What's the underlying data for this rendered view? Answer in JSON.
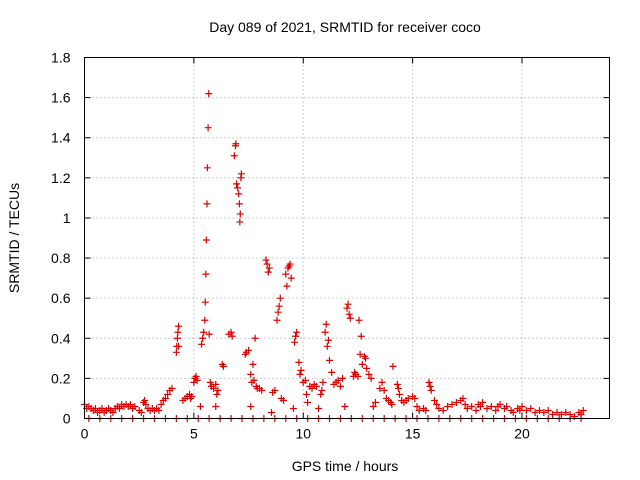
{
  "chart_data": {
    "type": "scatter",
    "title": "Day 089 of 2021, SRMTID for receiver coco",
    "xlabel": "GPS time / hours",
    "ylabel": "SRMTID / TECUs",
    "xlim": [
      0,
      24
    ],
    "ylim": [
      0,
      1.8
    ],
    "x_ticks": [
      0,
      5,
      10,
      15,
      20
    ],
    "x_tick_labels": [
      "0",
      "5",
      "10",
      "15",
      "20"
    ],
    "y_ticks": [
      0,
      0.2,
      0.4,
      0.6,
      0.8,
      1.0,
      1.2,
      1.4,
      1.6,
      1.8
    ],
    "y_tick_labels": [
      "0",
      "0.2",
      "0.4",
      "0.6",
      "0.8",
      "1",
      "1.2",
      "1.4",
      "1.6",
      "1.8"
    ],
    "grid": true,
    "marker": "plus",
    "series": [
      {
        "name": "SRMTID",
        "color": "#e00000",
        "points": [
          [
            0.0,
            0.07
          ],
          [
            0.1,
            0.05
          ],
          [
            0.2,
            0.06
          ],
          [
            0.3,
            0.05
          ],
          [
            0.4,
            0.04
          ],
          [
            0.5,
            0.05
          ],
          [
            0.6,
            0.03
          ],
          [
            0.7,
            0.04
          ],
          [
            0.8,
            0.05
          ],
          [
            0.9,
            0.03
          ],
          [
            1.0,
            0.04
          ],
          [
            1.1,
            0.05
          ],
          [
            1.2,
            0.04
          ],
          [
            1.3,
            0.03
          ],
          [
            1.4,
            0.05
          ],
          [
            1.5,
            0.06
          ],
          [
            1.6,
            0.05
          ],
          [
            1.7,
            0.07
          ],
          [
            1.8,
            0.06
          ],
          [
            1.9,
            0.07
          ],
          [
            2.0,
            0.06
          ],
          [
            2.1,
            0.07
          ],
          [
            2.2,
            0.05
          ],
          [
            2.3,
            0.06
          ],
          [
            2.5,
            0.04
          ],
          [
            2.6,
            0.03
          ],
          [
            2.7,
            0.08
          ],
          [
            2.75,
            0.09
          ],
          [
            2.8,
            0.07
          ],
          [
            2.9,
            0.05
          ],
          [
            3.0,
            0.04
          ],
          [
            3.1,
            0.05
          ],
          [
            3.2,
            0.04
          ],
          [
            3.3,
            0.05
          ],
          [
            3.4,
            0.04
          ],
          [
            3.5,
            0.07
          ],
          [
            3.6,
            0.09
          ],
          [
            3.7,
            0.1
          ],
          [
            3.8,
            0.12
          ],
          [
            3.9,
            0.14
          ],
          [
            4.0,
            0.15
          ],
          [
            4.2,
            0.33
          ],
          [
            4.22,
            0.36
          ],
          [
            4.25,
            0.4
          ],
          [
            4.27,
            0.43
          ],
          [
            4.3,
            0.46
          ],
          [
            4.3,
            0.36
          ],
          [
            4.5,
            0.09
          ],
          [
            4.6,
            0.1
          ],
          [
            4.7,
            0.11
          ],
          [
            4.8,
            0.12
          ],
          [
            4.85,
            0.1
          ],
          [
            4.9,
            0.11
          ],
          [
            5.0,
            0.18
          ],
          [
            5.05,
            0.2
          ],
          [
            5.1,
            0.21
          ],
          [
            5.15,
            0.19
          ],
          [
            5.3,
            0.06
          ],
          [
            5.35,
            0.37
          ],
          [
            5.4,
            0.4
          ],
          [
            5.45,
            0.43
          ],
          [
            5.5,
            0.49
          ],
          [
            5.52,
            0.58
          ],
          [
            5.55,
            0.72
          ],
          [
            5.57,
            0.89
          ],
          [
            5.6,
            1.07
          ],
          [
            5.62,
            1.25
          ],
          [
            5.65,
            1.45
          ],
          [
            5.68,
            1.62
          ],
          [
            5.7,
            0.42
          ],
          [
            5.75,
            0.18
          ],
          [
            5.8,
            0.16
          ],
          [
            5.9,
            0.15
          ],
          [
            6.0,
            0.17
          ],
          [
            6.05,
            0.12
          ],
          [
            6.1,
            0.14
          ],
          [
            6.0,
            0.06
          ],
          [
            6.3,
            0.27
          ],
          [
            6.35,
            0.26
          ],
          [
            6.6,
            0.42
          ],
          [
            6.7,
            0.43
          ],
          [
            6.75,
            0.41
          ],
          [
            6.85,
            1.31
          ],
          [
            6.9,
            1.36
          ],
          [
            6.92,
            1.37
          ],
          [
            6.95,
            1.17
          ],
          [
            7.0,
            1.15
          ],
          [
            7.05,
            1.12
          ],
          [
            7.08,
            1.07
          ],
          [
            7.1,
            0.98
          ],
          [
            7.12,
            1.02
          ],
          [
            7.15,
            1.2
          ],
          [
            7.17,
            1.22
          ],
          [
            7.35,
            0.32
          ],
          [
            7.4,
            0.33
          ],
          [
            7.5,
            0.34
          ],
          [
            7.6,
            0.22
          ],
          [
            7.65,
            0.18
          ],
          [
            7.7,
            0.27
          ],
          [
            7.75,
            0.19
          ],
          [
            7.8,
            0.4
          ],
          [
            7.85,
            0.16
          ],
          [
            7.9,
            0.15
          ],
          [
            7.6,
            0.06
          ],
          [
            8.0,
            0.15
          ],
          [
            8.1,
            0.14
          ],
          [
            8.3,
            0.79
          ],
          [
            8.35,
            0.77
          ],
          [
            8.4,
            0.73
          ],
          [
            8.45,
            0.75
          ],
          [
            8.6,
            0.13
          ],
          [
            8.7,
            0.14
          ],
          [
            8.55,
            0.03
          ],
          [
            8.8,
            0.49
          ],
          [
            8.85,
            0.53
          ],
          [
            8.9,
            0.56
          ],
          [
            8.95,
            0.6
          ],
          [
            9.0,
            0.1
          ],
          [
            9.1,
            0.09
          ],
          [
            9.2,
            0.72
          ],
          [
            9.25,
            0.66
          ],
          [
            9.3,
            0.75
          ],
          [
            9.35,
            0.76
          ],
          [
            9.4,
            0.77
          ],
          [
            9.45,
            0.7
          ],
          [
            9.55,
            0.05
          ],
          [
            9.6,
            0.38
          ],
          [
            9.65,
            0.41
          ],
          [
            9.7,
            0.43
          ],
          [
            9.8,
            0.28
          ],
          [
            9.85,
            0.22
          ],
          [
            9.9,
            0.24
          ],
          [
            10.0,
            0.18
          ],
          [
            10.1,
            0.19
          ],
          [
            10.15,
            0.12
          ],
          [
            10.2,
            0.08
          ],
          [
            10.3,
            0.16
          ],
          [
            10.4,
            0.15
          ],
          [
            10.5,
            0.17
          ],
          [
            10.6,
            0.16
          ],
          [
            10.7,
            0.05
          ],
          [
            10.8,
            0.12
          ],
          [
            10.85,
            0.14
          ],
          [
            10.9,
            0.18
          ],
          [
            11.0,
            0.43
          ],
          [
            11.05,
            0.47
          ],
          [
            11.1,
            0.36
          ],
          [
            11.15,
            0.39
          ],
          [
            11.2,
            0.29
          ],
          [
            11.3,
            0.23
          ],
          [
            11.4,
            0.17
          ],
          [
            11.5,
            0.18
          ],
          [
            11.6,
            0.19
          ],
          [
            11.7,
            0.16
          ],
          [
            11.8,
            0.2
          ],
          [
            11.9,
            0.06
          ],
          [
            12.0,
            0.55
          ],
          [
            12.05,
            0.57
          ],
          [
            12.1,
            0.52
          ],
          [
            12.15,
            0.5
          ],
          [
            12.3,
            0.21
          ],
          [
            12.35,
            0.23
          ],
          [
            12.4,
            0.22
          ],
          [
            12.5,
            0.21
          ],
          [
            12.55,
            0.49
          ],
          [
            12.6,
            0.32
          ],
          [
            12.65,
            0.41
          ],
          [
            12.7,
            0.27
          ],
          [
            12.8,
            0.31
          ],
          [
            12.85,
            0.3
          ],
          [
            12.9,
            0.25
          ],
          [
            13.0,
            0.22
          ],
          [
            13.1,
            0.2
          ],
          [
            13.2,
            0.06
          ],
          [
            13.3,
            0.08
          ],
          [
            13.5,
            0.15
          ],
          [
            13.6,
            0.18
          ],
          [
            13.7,
            0.14
          ],
          [
            13.8,
            0.1
          ],
          [
            13.9,
            0.09
          ],
          [
            14.0,
            0.08
          ],
          [
            14.05,
            0.07
          ],
          [
            14.1,
            0.26
          ],
          [
            14.3,
            0.17
          ],
          [
            14.35,
            0.15
          ],
          [
            14.4,
            0.12
          ],
          [
            14.5,
            0.09
          ],
          [
            14.6,
            0.08
          ],
          [
            14.7,
            0.09
          ],
          [
            14.8,
            0.1
          ],
          [
            15.0,
            0.11
          ],
          [
            15.1,
            0.1
          ],
          [
            15.2,
            0.06
          ],
          [
            15.3,
            0.04
          ],
          [
            15.5,
            0.05
          ],
          [
            15.6,
            0.04
          ],
          [
            15.75,
            0.18
          ],
          [
            15.8,
            0.16
          ],
          [
            15.85,
            0.14
          ],
          [
            16.0,
            0.09
          ],
          [
            16.1,
            0.07
          ],
          [
            16.2,
            0.05
          ],
          [
            16.4,
            0.04
          ],
          [
            16.6,
            0.06
          ],
          [
            16.8,
            0.07
          ],
          [
            17.0,
            0.08
          ],
          [
            17.2,
            0.09
          ],
          [
            17.3,
            0.1
          ],
          [
            17.4,
            0.07
          ],
          [
            17.5,
            0.05
          ],
          [
            17.7,
            0.06
          ],
          [
            17.9,
            0.04
          ],
          [
            18.0,
            0.07
          ],
          [
            18.1,
            0.06
          ],
          [
            18.2,
            0.08
          ],
          [
            18.4,
            0.05
          ],
          [
            18.6,
            0.06
          ],
          [
            18.8,
            0.04
          ],
          [
            18.9,
            0.06
          ],
          [
            19.0,
            0.07
          ],
          [
            19.2,
            0.05
          ],
          [
            19.3,
            0.06
          ],
          [
            19.5,
            0.04
          ],
          [
            19.6,
            0.03
          ],
          [
            19.8,
            0.05
          ],
          [
            19.9,
            0.04
          ],
          [
            20.0,
            0.06
          ],
          [
            20.2,
            0.04
          ],
          [
            20.4,
            0.05
          ],
          [
            20.6,
            0.03
          ],
          [
            20.8,
            0.04
          ],
          [
            21.0,
            0.03
          ],
          [
            21.2,
            0.04
          ],
          [
            21.4,
            0.02
          ],
          [
            21.6,
            0.03
          ],
          [
            21.8,
            0.02
          ],
          [
            22.0,
            0.03
          ],
          [
            22.2,
            0.02
          ],
          [
            22.4,
            0.01
          ],
          [
            22.6,
            0.03
          ],
          [
            22.7,
            0.02
          ],
          [
            22.8,
            0.04
          ],
          [
            0.2,
            0.0
          ],
          [
            0.7,
            0.0
          ],
          [
            1.2,
            0.0
          ],
          [
            1.7,
            0.0
          ],
          [
            2.2,
            0.0
          ],
          [
            2.7,
            0.0
          ],
          [
            3.2,
            0.0
          ],
          [
            3.7,
            0.0
          ],
          [
            4.2,
            0.0
          ],
          [
            4.7,
            0.0
          ],
          [
            5.2,
            0.0
          ],
          [
            5.7,
            0.0
          ],
          [
            6.2,
            0.0
          ],
          [
            6.7,
            0.0
          ],
          [
            7.2,
            0.0
          ],
          [
            7.7,
            0.0
          ],
          [
            8.2,
            0.0
          ],
          [
            8.7,
            0.0
          ],
          [
            9.2,
            0.0
          ],
          [
            9.7,
            0.0
          ],
          [
            10.2,
            0.0
          ],
          [
            10.7,
            0.0
          ],
          [
            11.2,
            0.0
          ],
          [
            11.7,
            0.0
          ],
          [
            12.2,
            0.0
          ],
          [
            12.7,
            0.0
          ],
          [
            13.2,
            0.0
          ],
          [
            13.7,
            0.0
          ],
          [
            14.2,
            0.0
          ],
          [
            14.7,
            0.0
          ],
          [
            15.2,
            0.0
          ],
          [
            15.7,
            0.0
          ],
          [
            16.2,
            0.0
          ],
          [
            16.7,
            0.0
          ],
          [
            17.2,
            0.0
          ],
          [
            17.7,
            0.0
          ],
          [
            18.2,
            0.0
          ],
          [
            18.7,
            0.0
          ],
          [
            19.2,
            0.0
          ],
          [
            19.7,
            0.0
          ],
          [
            20.2,
            0.0
          ],
          [
            20.7,
            0.0
          ],
          [
            21.2,
            0.0
          ],
          [
            21.7,
            0.0
          ],
          [
            22.2,
            0.0
          ],
          [
            22.7,
            0.0
          ]
        ]
      }
    ]
  }
}
